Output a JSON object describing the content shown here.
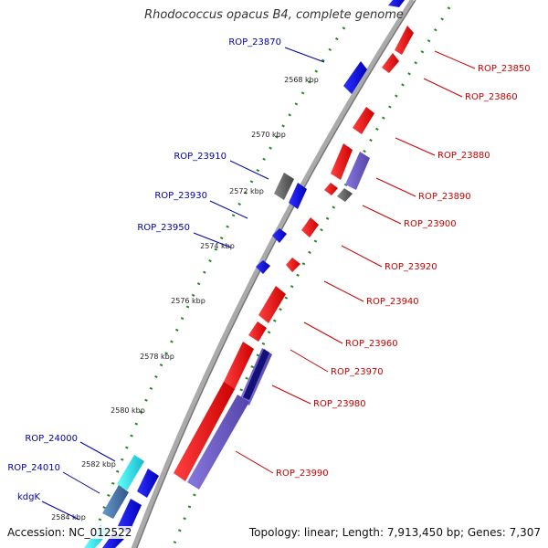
{
  "title": "Rhodococcus opacus B4, complete genome",
  "footer": {
    "accession": "Accession: NC_012522",
    "summary": "Topology: linear; Length: 7,913,450 bp; Genes: 7,307"
  },
  "colors": {
    "forward_gene": "#ee1111",
    "reverse_gene": "#1111dd",
    "grey_gene": "#666666",
    "light_reverse_gene": "#7766cc",
    "dark_reverse_gene": "#111177",
    "cyan_gene": "#22dddd",
    "steel_gene": "#4477aa",
    "backbone": "#999999",
    "dotted_ring": "#228822",
    "label_forward": "#cc0000",
    "label_reverse": "#0000aa"
  },
  "ticks": [
    "2568 kbp",
    "2570 kbp",
    "2572 kbp",
    "2574 kbp",
    "2576 kbp",
    "2578 kbp",
    "2580 kbp",
    "2582 kbp",
    "2584 kbp"
  ],
  "labels_left": [
    "ROP_23870",
    "ROP_23910",
    "ROP_23930",
    "ROP_23950",
    "ROP_24000",
    "ROP_24010",
    "kdgK"
  ],
  "labels_right": [
    "ROP_23850",
    "ROP_23860",
    "ROP_23880",
    "ROP_23890",
    "ROP_23900",
    "ROP_23920",
    "ROP_23940",
    "ROP_23960",
    "ROP_23970",
    "ROP_23980",
    "ROP_23990"
  ]
}
